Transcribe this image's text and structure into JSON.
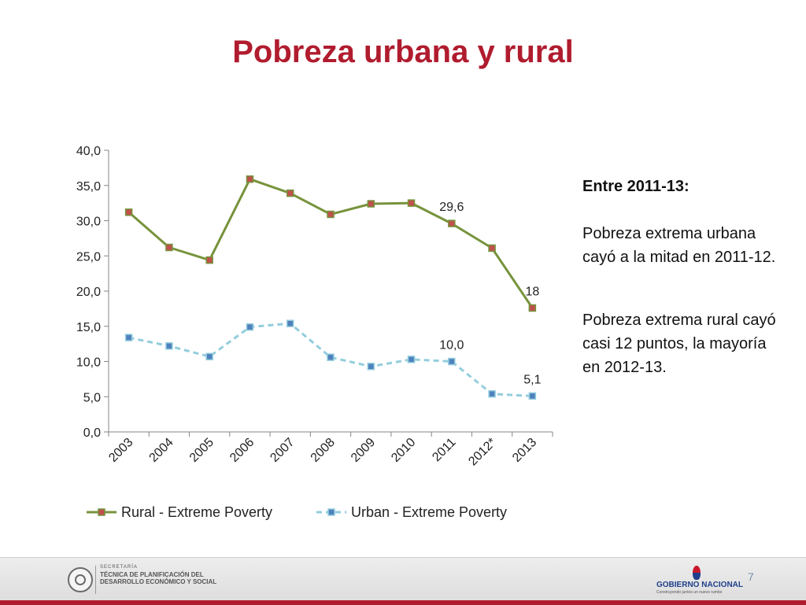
{
  "slide": {
    "title": "Pobreza urbana y rural",
    "page_number": "7"
  },
  "side_note": {
    "heading": "Entre 2011-13:",
    "paragraph_1": "Pobreza extrema urbana cayó a la mitad en 2011-12.",
    "paragraph_2": "Pobreza extrema rural cayó casi 12 puntos, la mayoría en 2012-13."
  },
  "footer": {
    "secretaria_label": "SECRETARÍA",
    "secretaria_name": "TÉCNICA DE PLANIFICACIÓN DEL DESARROLLO ECONÓMICO Y SOCIAL",
    "gobierno_name": "GOBIERNO NACIONAL",
    "gobierno_tagline": "Construyendo juntos un nuevo rumbo",
    "accent_color": "#b01c2e"
  },
  "chart_data": {
    "type": "line",
    "categories": [
      "2003",
      "2004",
      "2005",
      "2006",
      "2007",
      "2008",
      "2009",
      "2010",
      "2011",
      "2012*",
      "2013"
    ],
    "ylim": [
      0,
      40
    ],
    "yticks": [
      "0,0",
      "5,0",
      "10,0",
      "15,0",
      "20,0",
      "25,0",
      "30,0",
      "35,0",
      "40,0"
    ],
    "grid": false,
    "legend_position": "bottom",
    "series": [
      {
        "name": "Rural - Extreme Poverty",
        "values": [
          31.2,
          26.2,
          24.4,
          35.9,
          33.9,
          30.9,
          32.4,
          32.5,
          29.6,
          26.1,
          17.6
        ],
        "line_color": "#77933c",
        "marker_color": "#c0504d",
        "dashed": false
      },
      {
        "name": "Urban - Extreme Poverty",
        "values": [
          13.4,
          12.2,
          10.7,
          14.9,
          15.4,
          10.6,
          9.3,
          10.3,
          10.0,
          5.4,
          5.1
        ],
        "line_color": "#93cddd",
        "marker_color": "#4f81bd",
        "dashed": true
      }
    ],
    "annotations": [
      {
        "series": 0,
        "index": 8,
        "text": "29,6"
      },
      {
        "series": 0,
        "index": 10,
        "text": "18"
      },
      {
        "series": 1,
        "index": 8,
        "text": "10,0"
      },
      {
        "series": 1,
        "index": 10,
        "text": "5,1"
      }
    ]
  }
}
